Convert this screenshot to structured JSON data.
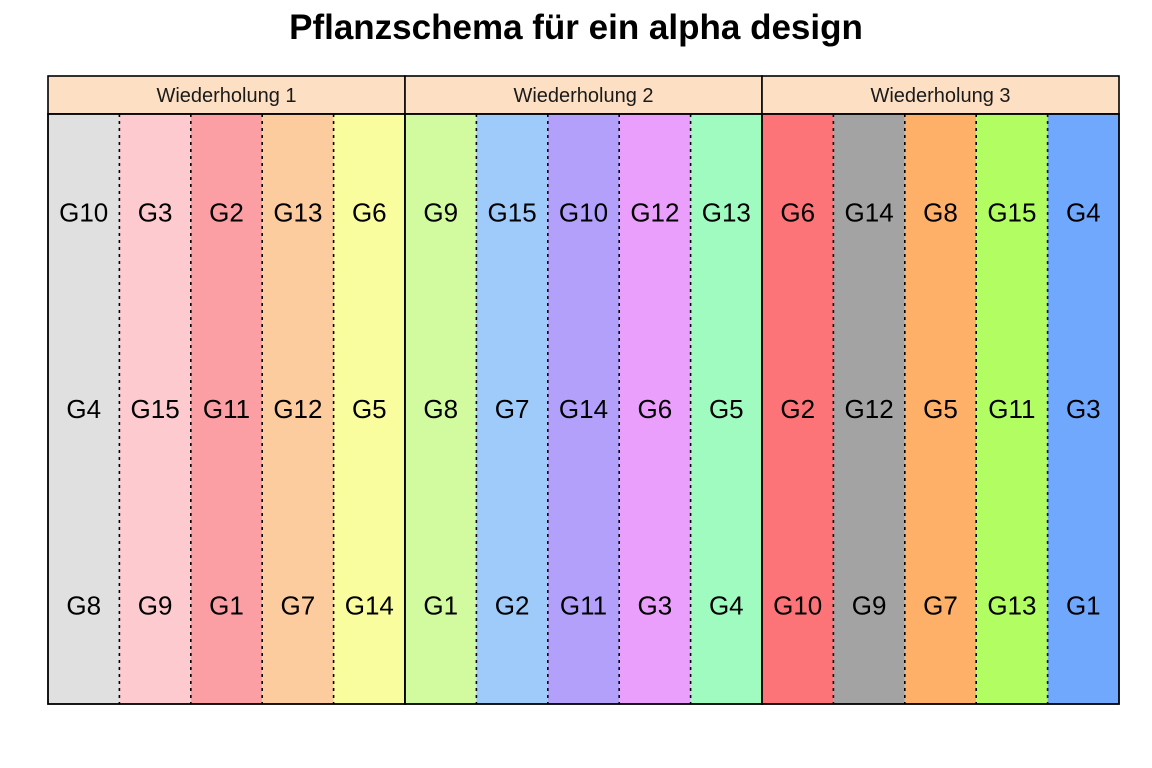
{
  "chart_data": {
    "type": "heatmap",
    "title": "Pflanzschema für ein alpha design",
    "facets": [
      {
        "label": "Wiederholung 1",
        "blocks": [
          {
            "color": "#e0e0e0",
            "rows": [
              "G10",
              "G4",
              "G8"
            ]
          },
          {
            "color": "#fccacf",
            "rows": [
              "G3",
              "G15",
              "G9"
            ]
          },
          {
            "color": "#fb9fa5",
            "rows": [
              "G2",
              "G11",
              "G1"
            ]
          },
          {
            "color": "#fccb9e",
            "rows": [
              "G13",
              "G12",
              "G7"
            ]
          },
          {
            "color": "#fafd9e",
            "rows": [
              "G6",
              "G5",
              "G14"
            ]
          }
        ]
      },
      {
        "label": "Wiederholung 2",
        "blocks": [
          {
            "color": "#d2fb9f",
            "rows": [
              "G9",
              "G8",
              "G1"
            ]
          },
          {
            "color": "#9fcbfb",
            "rows": [
              "G15",
              "G7",
              "G2"
            ]
          },
          {
            "color": "#b3a0fb",
            "rows": [
              "G10",
              "G14",
              "G11"
            ]
          },
          {
            "color": "#e99ffb",
            "rows": [
              "G12",
              "G6",
              "G3"
            ]
          },
          {
            "color": "#9ffbc0",
            "rows": [
              "G13",
              "G5",
              "G4"
            ]
          }
        ]
      },
      {
        "label": "Wiederholung 3",
        "blocks": [
          {
            "color": "#fd7478",
            "rows": [
              "G6",
              "G2",
              "G10"
            ]
          },
          {
            "color": "#a3a3a3",
            "rows": [
              "G14",
              "G12",
              "G9"
            ]
          },
          {
            "color": "#feb069",
            "rows": [
              "G8",
              "G5",
              "G7"
            ]
          },
          {
            "color": "#b1fd62",
            "rows": [
              "G15",
              "G11",
              "G13"
            ]
          },
          {
            "color": "#70a8fd",
            "rows": [
              "G4",
              "G3",
              "G1"
            ]
          }
        ]
      }
    ],
    "strip_color": "#fde0c3",
    "grid": false,
    "legend": "none"
  }
}
